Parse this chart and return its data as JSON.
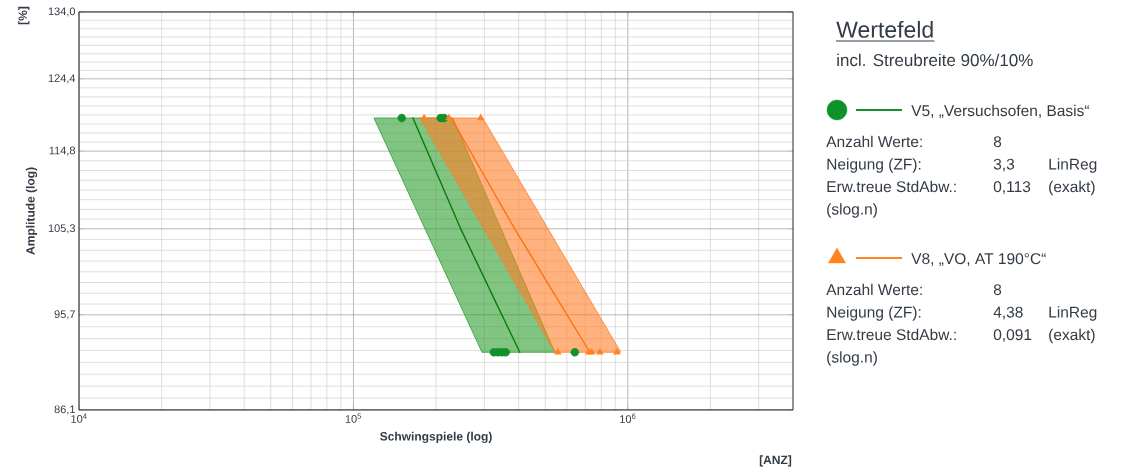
{
  "chart_data": {
    "type": "line",
    "title": "Wertefeld",
    "subtitle": "incl. Streubreite 90%/10%",
    "xlabel": "Schwingspiele (log)",
    "ylabel": "Amplitude (log)",
    "log": "xy",
    "grid": true,
    "legend": "right",
    "xlim": [
      10000,
      4000000
    ],
    "ylim": [
      86.1,
      134.0
    ],
    "xticks": [
      {
        "value": 10000,
        "label": "10$^{4}$"
      },
      {
        "value": 100000,
        "label": "10$^{5}$"
      },
      {
        "value": 1000000,
        "label": "10$^{6}$"
      }
    ],
    "yticks": [
      {
        "value": 86.1,
        "label": "86,1"
      },
      {
        "value": 95.7,
        "label": "95,7"
      },
      {
        "value": 105.3,
        "label": "105,3"
      },
      {
        "value": 114.8,
        "label": "114,8"
      },
      {
        "value": 124.4,
        "label": "124,4"
      },
      {
        "value": 134.0,
        "label": "134,0"
      }
    ],
    "series": [
      {
        "type": "area",
        "color": "#2e9e2e",
        "x": [
          118800,
          230000,
          542000,
          294000
        ],
        "values": [
          119.1,
          119.1,
          91.8,
          91.8
        ]
      },
      {
        "type": "area",
        "color": "#ff7f27",
        "x": [
          175000,
          296000,
          943000,
          542000
        ],
        "values": [
          119.1,
          119.1,
          91.8,
          91.8
        ]
      },
      {
        "color": "#0a7a0a",
        "x": [
          164800,
          246000,
          404000
        ],
        "values": [
          119.1,
          105.3,
          91.8
        ]
      },
      {
        "color": "#ff7010",
        "x": [
          227000,
          387000,
          727000
        ],
        "values": [
          119.1,
          105.3,
          91.8
        ]
      },
      {
        "name": "V5, „Versuchsofen, Basis“",
        "type": "scatter",
        "marker": "circle",
        "color": "#11912a",
        "x": [
          150000,
          208000,
          214000,
          325000,
          336000,
          348000,
          359000,
          641000
        ],
        "values": [
          119.1,
          119.1,
          119.1,
          91.8,
          91.8,
          91.8,
          91.8,
          91.8
        ]
      },
      {
        "name": "V8, „VO, AT 190°C“",
        "type": "scatter",
        "marker": "triangle",
        "color": "#ff8420",
        "x": [
          181000,
          223000,
          291000,
          556000,
          721000,
          739000,
          791000,
          912000
        ],
        "values": [
          119.1,
          119.1,
          119.1,
          91.8,
          91.8,
          91.8,
          91.8,
          91.8
        ]
      }
    ],
    "annotations": [
      "[%]",
      "[ANZ]",
      "Anzahl Werte:",
      "8",
      "Neigung (ZF):",
      "3,3",
      "LinReg",
      "Erw.treue StdAbw.:",
      "0,113",
      "(exakt)",
      "(slog.n)",
      "Anzahl Werte:",
      "8",
      "Neigung (ZF):",
      "4,38",
      "LinReg",
      "Erw.treue StdAbw.:",
      "0,091",
      "(exakt)",
      "(slog.n)"
    ]
  }
}
